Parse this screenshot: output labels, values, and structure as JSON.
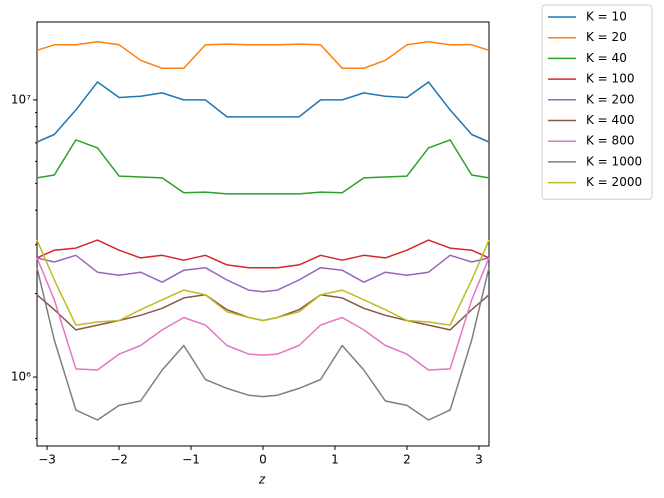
{
  "chart_data": {
    "type": "line",
    "xlabel": "z",
    "x": [
      -3.14,
      -2.9,
      -2.6,
      -2.3,
      -2.0,
      -1.7,
      -1.4,
      -1.1,
      -0.8,
      -0.5,
      -0.2,
      0,
      0.2,
      0.5,
      0.8,
      1.1,
      1.4,
      1.7,
      2.0,
      2.3,
      2.6,
      2.9,
      3.14
    ],
    "xlim": [
      -3.14,
      3.14
    ],
    "xticks": [
      {
        "value": -3,
        "label": "−3"
      },
      {
        "value": -2,
        "label": "−2"
      },
      {
        "value": -1,
        "label": "−1"
      },
      0,
      1,
      2,
      3
    ],
    "ylim": [
      564000,
      19100000
    ],
    "log_y": true,
    "yticks": [
      {
        "value": 1000000,
        "label": "10⁶"
      },
      {
        "value": 10000000,
        "label": "10⁷"
      }
    ],
    "minor_yticks": [
      600000,
      700000,
      800000,
      900000,
      2000000,
      3000000,
      4000000,
      5000000,
      6000000,
      7000000,
      8000000,
      9000000
    ],
    "legend": "outside-upper-right",
    "series": [
      {
        "name": "K = 10",
        "color": "#1f77b4",
        "values": [
          7050000,
          7500000,
          9200000,
          11600000,
          10200000,
          10300000,
          10600000,
          10000000,
          10000000,
          8680000,
          8680000,
          8680000,
          8680000,
          8680000,
          10000000,
          10000000,
          10600000,
          10300000,
          10200000,
          11600000,
          9200000,
          7500000,
          7050000
        ]
      },
      {
        "name": "K = 20",
        "color": "#ff7f0e",
        "values": [
          15100000,
          15800000,
          15800000,
          16200000,
          15800000,
          13900000,
          13000000,
          13000000,
          15800000,
          15900000,
          15800000,
          15800000,
          15800000,
          15900000,
          15800000,
          13000000,
          13000000,
          13900000,
          15800000,
          16200000,
          15800000,
          15800000,
          15100000
        ]
      },
      {
        "name": "K = 40",
        "color": "#2ca02c",
        "values": [
          5230000,
          5360000,
          7170000,
          6710000,
          5310000,
          5270000,
          5230000,
          4620000,
          4650000,
          4580000,
          4580000,
          4580000,
          4580000,
          4580000,
          4650000,
          4620000,
          5230000,
          5270000,
          5310000,
          6710000,
          7170000,
          5360000,
          5230000
        ]
      },
      {
        "name": "K = 100",
        "color": "#d62728",
        "values": [
          2690000,
          2870000,
          2920000,
          3120000,
          2870000,
          2690000,
          2750000,
          2640000,
          2750000,
          2540000,
          2480000,
          2480000,
          2480000,
          2540000,
          2750000,
          2640000,
          2750000,
          2690000,
          2870000,
          3120000,
          2920000,
          2870000,
          2690000
        ]
      },
      {
        "name": "K = 200",
        "color": "#9467bd",
        "values": [
          2690000,
          2600000,
          2750000,
          2390000,
          2330000,
          2390000,
          2200000,
          2430000,
          2480000,
          2240000,
          2060000,
          2030000,
          2060000,
          2240000,
          2480000,
          2430000,
          2200000,
          2390000,
          2330000,
          2390000,
          2750000,
          2600000,
          2690000
        ]
      },
      {
        "name": "K = 400",
        "color": "#8c564b",
        "values": [
          1980000,
          1750000,
          1480000,
          1540000,
          1600000,
          1670000,
          1770000,
          1930000,
          1980000,
          1750000,
          1640000,
          1600000,
          1640000,
          1750000,
          1980000,
          1930000,
          1770000,
          1670000,
          1600000,
          1540000,
          1480000,
          1750000,
          1980000
        ]
      },
      {
        "name": "K = 800",
        "color": "#e377c2",
        "values": [
          2690000,
          1900000,
          1070000,
          1060000,
          1210000,
          1300000,
          1480000,
          1640000,
          1540000,
          1300000,
          1210000,
          1200000,
          1210000,
          1300000,
          1540000,
          1640000,
          1480000,
          1300000,
          1210000,
          1060000,
          1070000,
          1900000,
          2690000
        ]
      },
      {
        "name": "K = 1000",
        "color": "#7f7f7f",
        "values": [
          2480000,
          1360000,
          760000,
          700000,
          790000,
          820000,
          1060000,
          1300000,
          980000,
          910000,
          860000,
          850000,
          860000,
          910000,
          980000,
          1300000,
          1060000,
          820000,
          790000,
          700000,
          760000,
          1360000,
          2480000
        ]
      },
      {
        "name": "K = 2000",
        "color": "#bcbd22",
        "values": [
          3120000,
          2240000,
          1540000,
          1580000,
          1600000,
          1750000,
          1900000,
          2060000,
          1980000,
          1720000,
          1640000,
          1600000,
          1640000,
          1720000,
          1980000,
          2060000,
          1900000,
          1750000,
          1600000,
          1580000,
          1540000,
          2240000,
          3120000
        ]
      }
    ]
  }
}
